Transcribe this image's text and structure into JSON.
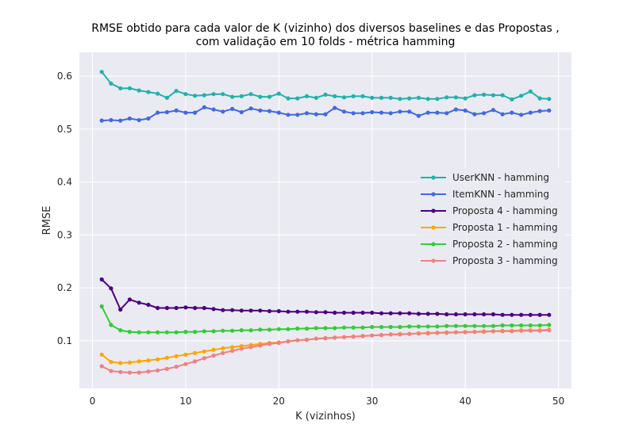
{
  "chart_data": {
    "type": "line",
    "title_lines": [
      "RMSE obtido para cada valor de K (vizinho) dos diversos baselines e das Propostas ,",
      "com validação em 10 folds - métrica hamming"
    ],
    "xlabel": "K (vizinhos)",
    "ylabel": "RMSE",
    "xlim": [
      -1.4,
      51.4
    ],
    "ylim": [
      0.01,
      0.645
    ],
    "xticks": [
      0,
      10,
      20,
      30,
      40,
      50
    ],
    "yticks": [
      0.1,
      0.2,
      0.3,
      0.4,
      0.5,
      0.6
    ],
    "xtick_labels": [
      "0",
      "10",
      "20",
      "30",
      "40",
      "50"
    ],
    "ytick_labels": [
      "0.1",
      "0.2",
      "0.3",
      "0.4",
      "0.5",
      "0.6"
    ],
    "grid": true,
    "legend_position": "center-right",
    "x": [
      1,
      2,
      3,
      4,
      5,
      6,
      7,
      8,
      9,
      10,
      11,
      12,
      13,
      14,
      15,
      16,
      17,
      18,
      19,
      20,
      21,
      22,
      23,
      24,
      25,
      26,
      27,
      28,
      29,
      30,
      31,
      32,
      33,
      34,
      35,
      36,
      37,
      38,
      39,
      40,
      41,
      42,
      43,
      44,
      45,
      46,
      47,
      48,
      49
    ],
    "series": [
      {
        "name": "UserKNN - hamming",
        "color": "#20b2aa",
        "values": [
          0.608,
          0.586,
          0.577,
          0.577,
          0.573,
          0.57,
          0.567,
          0.559,
          0.572,
          0.566,
          0.563,
          0.564,
          0.566,
          0.566,
          0.561,
          0.562,
          0.566,
          0.561,
          0.561,
          0.567,
          0.558,
          0.558,
          0.562,
          0.559,
          0.565,
          0.562,
          0.56,
          0.562,
          0.562,
          0.559,
          0.559,
          0.559,
          0.557,
          0.558,
          0.559,
          0.557,
          0.557,
          0.56,
          0.56,
          0.558,
          0.564,
          0.565,
          0.564,
          0.564,
          0.556,
          0.563,
          0.571,
          0.558,
          0.557
        ]
      },
      {
        "name": "ItemKNN - hamming",
        "color": "#4169e1",
        "values": [
          0.516,
          0.517,
          0.516,
          0.52,
          0.517,
          0.52,
          0.531,
          0.532,
          0.535,
          0.531,
          0.531,
          0.541,
          0.537,
          0.533,
          0.538,
          0.532,
          0.539,
          0.535,
          0.534,
          0.531,
          0.527,
          0.527,
          0.53,
          0.528,
          0.528,
          0.54,
          0.533,
          0.53,
          0.53,
          0.532,
          0.531,
          0.53,
          0.533,
          0.533,
          0.525,
          0.531,
          0.531,
          0.53,
          0.537,
          0.535,
          0.528,
          0.53,
          0.536,
          0.528,
          0.531,
          0.527,
          0.531,
          0.534,
          0.535
        ]
      },
      {
        "name": "Proposta 4 - hamming",
        "color": "#4b0082",
        "values": [
          0.216,
          0.199,
          0.159,
          0.178,
          0.172,
          0.168,
          0.162,
          0.162,
          0.162,
          0.163,
          0.162,
          0.162,
          0.16,
          0.158,
          0.158,
          0.157,
          0.157,
          0.157,
          0.156,
          0.156,
          0.155,
          0.155,
          0.155,
          0.154,
          0.154,
          0.153,
          0.153,
          0.153,
          0.153,
          0.153,
          0.152,
          0.152,
          0.152,
          0.152,
          0.151,
          0.151,
          0.151,
          0.15,
          0.15,
          0.15,
          0.15,
          0.15,
          0.15,
          0.149,
          0.149,
          0.149,
          0.149,
          0.149,
          0.149
        ]
      },
      {
        "name": "Proposta 1 - hamming",
        "color": "#ffa500",
        "values": [
          0.074,
          0.06,
          0.058,
          0.059,
          0.061,
          0.063,
          0.065,
          0.068,
          0.071,
          0.074,
          0.077,
          0.08,
          0.083,
          0.086,
          0.088,
          0.09,
          0.092,
          0.094,
          0.096,
          0.097,
          0.099,
          0.101,
          0.102,
          0.104,
          0.105,
          0.106,
          0.107,
          0.108,
          0.109,
          0.11,
          0.111,
          0.112,
          0.113,
          0.113,
          0.114,
          0.115,
          0.115,
          0.116,
          0.116,
          0.117,
          0.117,
          0.118,
          0.118,
          0.119,
          0.119,
          0.12,
          0.12,
          0.12,
          0.121
        ]
      },
      {
        "name": "Proposta 2 - hamming",
        "color": "#32cd32",
        "values": [
          0.165,
          0.13,
          0.12,
          0.117,
          0.116,
          0.116,
          0.116,
          0.116,
          0.116,
          0.117,
          0.117,
          0.118,
          0.118,
          0.119,
          0.119,
          0.12,
          0.12,
          0.121,
          0.121,
          0.122,
          0.122,
          0.123,
          0.123,
          0.124,
          0.124,
          0.124,
          0.125,
          0.125,
          0.125,
          0.126,
          0.126,
          0.126,
          0.126,
          0.127,
          0.127,
          0.127,
          0.127,
          0.128,
          0.128,
          0.128,
          0.128,
          0.128,
          0.128,
          0.129,
          0.129,
          0.129,
          0.129,
          0.129,
          0.13
        ]
      },
      {
        "name": "Proposta 3 - hamming",
        "color": "#f08080",
        "values": [
          0.052,
          0.043,
          0.041,
          0.04,
          0.04,
          0.042,
          0.044,
          0.047,
          0.051,
          0.056,
          0.061,
          0.067,
          0.072,
          0.077,
          0.081,
          0.085,
          0.088,
          0.091,
          0.094,
          0.096,
          0.099,
          0.101,
          0.102,
          0.104,
          0.105,
          0.106,
          0.107,
          0.108,
          0.109,
          0.11,
          0.111,
          0.112,
          0.112,
          0.113,
          0.114,
          0.114,
          0.115,
          0.115,
          0.116,
          0.116,
          0.117,
          0.117,
          0.118,
          0.118,
          0.118,
          0.119,
          0.119,
          0.119,
          0.12
        ]
      }
    ]
  }
}
